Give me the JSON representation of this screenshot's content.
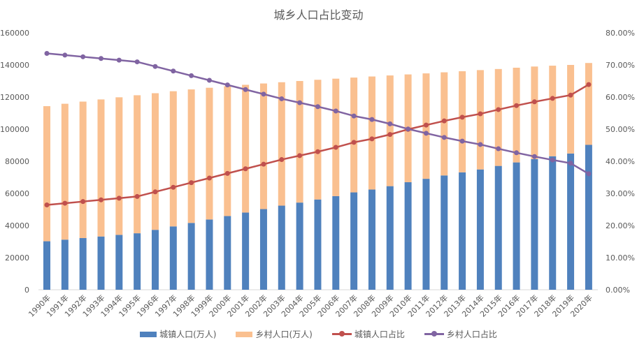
{
  "chart_data": {
    "type": "bar+line",
    "title": "城乡人口占比变动",
    "categories": [
      "1990年",
      "1991年",
      "1992年",
      "1993年",
      "1994年",
      "1995年",
      "1996年",
      "1997年",
      "1998年",
      "1999年",
      "2000年",
      "2001年",
      "2002年",
      "2003年",
      "2004年",
      "2005年",
      "2006年",
      "2007年",
      "2008年",
      "2009年",
      "2010年",
      "2011年",
      "2012年",
      "2013年",
      "2014年",
      "2015年",
      "2016年",
      "2017年",
      "2018年",
      "2019年",
      "2020年"
    ],
    "series": [
      {
        "name": "城镇人口(万人)",
        "kind": "stacked-bar",
        "axis": "left",
        "color": "#4f81bd",
        "values": [
          30195,
          31203,
          32175,
          33173,
          34169,
          35174,
          37304,
          39449,
          41608,
          43748,
          45906,
          48064,
          50212,
          52376,
          54283,
          56212,
          58288,
          60633,
          62403,
          64512,
          66978,
          69079,
          71182,
          73111,
          74916,
          77116,
          79298,
          81347,
          83137,
          84843,
          90220
        ]
      },
      {
        "name": "乡村人口(万人)",
        "kind": "stacked-bar",
        "axis": "left",
        "color": "#fac090",
        "values": [
          84138,
          84620,
          84996,
          85344,
          85681,
          85947,
          85085,
          84177,
          83153,
          82038,
          80837,
          79563,
          78241,
          76851,
          75705,
          74544,
          73160,
          71496,
          70399,
          68938,
          67113,
          65656,
          64222,
          62961,
          61866,
          60346,
          58973,
          57661,
          56401,
          55162,
          50992
        ]
      },
      {
        "name": "城镇人口占比",
        "kind": "line",
        "axis": "right",
        "color": "#c0504d",
        "values": [
          26.41,
          26.94,
          27.46,
          27.99,
          28.51,
          29.04,
          30.48,
          31.91,
          33.35,
          34.78,
          36.22,
          37.66,
          39.09,
          40.53,
          41.76,
          42.99,
          44.34,
          45.89,
          46.99,
          48.34,
          49.95,
          51.27,
          52.57,
          53.73,
          54.77,
          56.1,
          57.35,
          58.52,
          59.58,
          60.6,
          63.89
        ]
      },
      {
        "name": "乡村人口占比",
        "kind": "line",
        "axis": "right",
        "color": "#8064a2",
        "values": [
          73.59,
          73.06,
          72.54,
          72.01,
          71.49,
          70.96,
          69.52,
          68.09,
          66.65,
          65.22,
          63.78,
          62.34,
          60.91,
          59.47,
          58.24,
          57.01,
          55.66,
          54.11,
          53.01,
          51.66,
          50.05,
          48.73,
          47.43,
          46.27,
          45.23,
          43.9,
          42.65,
          41.48,
          40.42,
          39.4,
          36.11
        ]
      }
    ],
    "ylim_left": [
      0,
      160000
    ],
    "yticks_left": [
      "0",
      "20000",
      "40000",
      "60000",
      "80000",
      "100000",
      "120000",
      "140000",
      "160000"
    ],
    "ylim_right": [
      0,
      80
    ],
    "yticks_right": [
      "0.00%",
      "10.00%",
      "20.00%",
      "30.00%",
      "40.00%",
      "50.00%",
      "60.00%",
      "70.00%",
      "80.00%"
    ],
    "grid": false,
    "legend_position": "bottom"
  }
}
